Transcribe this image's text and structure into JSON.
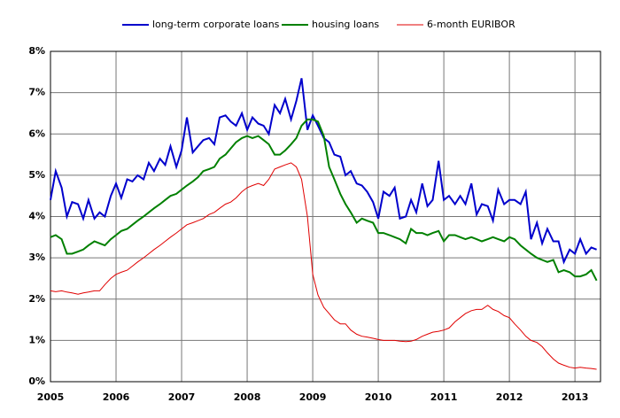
{
  "chart_data": {
    "type": "line",
    "x": [
      2005.0,
      2005.08,
      2005.17,
      2005.25,
      2005.33,
      2005.42,
      2005.5,
      2005.58,
      2005.67,
      2005.75,
      2005.83,
      2005.92,
      2006.0,
      2006.08,
      2006.17,
      2006.25,
      2006.33,
      2006.42,
      2006.5,
      2006.58,
      2006.67,
      2006.75,
      2006.83,
      2006.92,
      2007.0,
      2007.08,
      2007.17,
      2007.25,
      2007.33,
      2007.42,
      2007.5,
      2007.58,
      2007.67,
      2007.75,
      2007.83,
      2007.92,
      2008.0,
      2008.08,
      2008.17,
      2008.25,
      2008.33,
      2008.42,
      2008.5,
      2008.58,
      2008.67,
      2008.75,
      2008.83,
      2008.92,
      2009.0,
      2009.08,
      2009.17,
      2009.25,
      2009.33,
      2009.42,
      2009.5,
      2009.58,
      2009.67,
      2009.75,
      2009.83,
      2009.92,
      2010.0,
      2010.08,
      2010.17,
      2010.25,
      2010.33,
      2010.42,
      2010.5,
      2010.58,
      2010.67,
      2010.75,
      2010.83,
      2010.92,
      2011.0,
      2011.08,
      2011.17,
      2011.25,
      2011.33,
      2011.42,
      2011.5,
      2011.58,
      2011.67,
      2011.75,
      2011.83,
      2011.92,
      2012.0,
      2012.08,
      2012.17,
      2012.25,
      2012.33,
      2012.42,
      2012.5,
      2012.58,
      2012.67,
      2012.75,
      2012.83,
      2012.92,
      2013.0,
      2013.08,
      2013.17,
      2013.25,
      2013.33
    ],
    "series": [
      {
        "name": "long-term corporate loans",
        "color": "#0000cc",
        "values": [
          4.4,
          5.1,
          4.7,
          4.0,
          4.35,
          4.3,
          3.95,
          4.4,
          3.95,
          4.1,
          4.0,
          4.5,
          4.8,
          4.45,
          4.9,
          4.85,
          5.0,
          4.9,
          5.3,
          5.1,
          5.4,
          5.25,
          5.7,
          5.2,
          5.6,
          6.4,
          5.55,
          5.7,
          5.85,
          5.9,
          5.75,
          6.4,
          6.45,
          6.3,
          6.2,
          6.5,
          6.1,
          6.4,
          6.25,
          6.2,
          6.0,
          6.7,
          6.5,
          6.85,
          6.35,
          6.8,
          7.35,
          6.1,
          6.45,
          6.2,
          5.9,
          5.8,
          5.5,
          5.45,
          5.0,
          5.1,
          4.8,
          4.75,
          4.6,
          4.35,
          3.95,
          4.6,
          4.5,
          4.7,
          3.95,
          4.0,
          4.4,
          4.1,
          4.8,
          4.25,
          4.4,
          5.35,
          4.4,
          4.5,
          4.3,
          4.5,
          4.3,
          4.8,
          4.05,
          4.3,
          4.25,
          3.9,
          4.65,
          4.3,
          4.4,
          4.4,
          4.3,
          4.6,
          3.45,
          3.85,
          3.35,
          3.7,
          3.4,
          3.4,
          2.9,
          3.2,
          3.1,
          3.45,
          3.1,
          3.25,
          3.2
        ]
      },
      {
        "name": "housing loans",
        "color": "#008000",
        "values": [
          3.5,
          3.55,
          3.45,
          3.1,
          3.1,
          3.15,
          3.2,
          3.3,
          3.4,
          3.35,
          3.3,
          3.45,
          3.55,
          3.65,
          3.7,
          3.8,
          3.9,
          4.0,
          4.1,
          4.2,
          4.3,
          4.4,
          4.5,
          4.55,
          4.65,
          4.75,
          4.85,
          4.95,
          5.1,
          5.15,
          5.2,
          5.4,
          5.5,
          5.65,
          5.8,
          5.9,
          5.95,
          5.9,
          5.95,
          5.85,
          5.75,
          5.5,
          5.5,
          5.6,
          5.75,
          5.9,
          6.2,
          6.35,
          6.35,
          6.3,
          5.95,
          5.2,
          4.9,
          4.55,
          4.3,
          4.1,
          3.85,
          3.95,
          3.9,
          3.85,
          3.6,
          3.6,
          3.55,
          3.5,
          3.45,
          3.35,
          3.7,
          3.6,
          3.6,
          3.55,
          3.6,
          3.65,
          3.4,
          3.55,
          3.55,
          3.5,
          3.45,
          3.5,
          3.45,
          3.4,
          3.45,
          3.5,
          3.45,
          3.4,
          3.5,
          3.45,
          3.3,
          3.2,
          3.1,
          3.0,
          2.95,
          2.9,
          2.95,
          2.65,
          2.7,
          2.65,
          2.55,
          2.55,
          2.6,
          2.7,
          2.45
        ]
      },
      {
        "name": "6-month EURIBOR",
        "color": "#e00000",
        "values": [
          2.2,
          2.18,
          2.2,
          2.17,
          2.15,
          2.12,
          2.15,
          2.17,
          2.2,
          2.2,
          2.35,
          2.5,
          2.6,
          2.65,
          2.7,
          2.8,
          2.9,
          3.0,
          3.1,
          3.2,
          3.3,
          3.4,
          3.5,
          3.6,
          3.7,
          3.8,
          3.85,
          3.9,
          3.95,
          4.05,
          4.1,
          4.2,
          4.3,
          4.35,
          4.45,
          4.6,
          4.7,
          4.75,
          4.8,
          4.75,
          4.9,
          5.15,
          5.2,
          5.25,
          5.3,
          5.2,
          4.9,
          4.0,
          2.6,
          2.1,
          1.8,
          1.65,
          1.5,
          1.4,
          1.4,
          1.25,
          1.15,
          1.1,
          1.08,
          1.05,
          1.02,
          1.0,
          1.0,
          1.0,
          0.98,
          0.97,
          0.98,
          1.02,
          1.1,
          1.15,
          1.2,
          1.22,
          1.25,
          1.3,
          1.45,
          1.55,
          1.65,
          1.72,
          1.75,
          1.75,
          1.85,
          1.75,
          1.7,
          1.6,
          1.55,
          1.4,
          1.25,
          1.1,
          1.0,
          0.95,
          0.85,
          0.7,
          0.55,
          0.45,
          0.4,
          0.35,
          0.33,
          0.35,
          0.33,
          0.32,
          0.3
        ]
      }
    ],
    "xlim": [
      2005,
      2013.39
    ],
    "xticks": [
      2005,
      2006,
      2007,
      2008,
      2009,
      2010,
      2011,
      2012,
      2013
    ],
    "ylim": [
      0,
      8
    ],
    "yticks": [
      {
        "value": 0,
        "label": "0%"
      },
      {
        "value": 1,
        "label": "1%"
      },
      {
        "value": 2,
        "label": "2%"
      },
      {
        "value": 3,
        "label": "3%"
      },
      {
        "value": 4,
        "label": "4%"
      },
      {
        "value": 5,
        "label": "5%"
      },
      {
        "value": 6,
        "label": "6%"
      },
      {
        "value": 7,
        "label": "7%"
      },
      {
        "value": 8,
        "label": "8%"
      }
    ],
    "grid": true,
    "legend": "top"
  }
}
